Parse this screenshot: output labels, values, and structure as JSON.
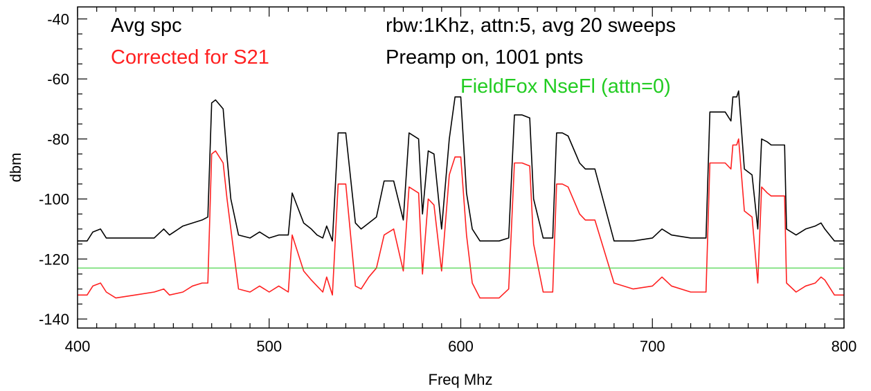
{
  "chart_data": {
    "type": "line",
    "xlabel": "Freq Mhz",
    "ylabel": "dbm",
    "xlim": [
      400,
      800
    ],
    "ylim": [
      -143,
      -36
    ],
    "x_ticks": [
      400,
      500,
      600,
      700,
      800
    ],
    "y_ticks": [
      -140,
      -120,
      -100,
      -80,
      -60,
      -40
    ],
    "grid": false,
    "annotations": [
      {
        "text": "Avg spc",
        "color": "#000000"
      },
      {
        "text": "Corrected for S21",
        "color": "#ff2020"
      },
      {
        "text": "rbw:1Khz, attn:5, avg 20 sweeps",
        "color": "#000000"
      },
      {
        "text": "Preamp  on, 1001 pnts",
        "color": "#000000"
      },
      {
        "text": "FieldFox NseFl (attn=0)",
        "color": "#22cc22"
      }
    ],
    "series": [
      {
        "name": "Avg spc",
        "color": "#000000",
        "x": [
          400,
          405,
          408,
          412,
          415,
          420,
          430,
          440,
          445,
          448,
          455,
          460,
          465,
          468,
          470,
          472,
          476,
          478,
          480,
          484,
          490,
          495,
          500,
          505,
          510,
          512,
          515,
          518,
          522,
          525,
          528,
          530,
          533,
          536,
          540,
          545,
          548,
          552,
          556,
          560,
          565,
          570,
          573,
          578,
          580,
          583,
          586,
          590,
          594,
          597,
          600,
          603,
          606,
          610,
          620,
          625,
          628,
          632,
          636,
          638,
          643,
          648,
          650,
          653,
          656,
          660,
          662,
          665,
          670,
          680,
          690,
          700,
          705,
          710,
          720,
          728,
          730,
          735,
          738,
          741,
          742,
          744,
          745,
          748,
          752,
          755,
          757,
          760,
          762,
          765,
          769,
          770,
          775,
          780,
          785,
          788,
          790,
          795,
          800
        ],
        "y": [
          -114,
          -114,
          -111,
          -110,
          -113,
          -113,
          -113,
          -113,
          -110,
          -112,
          -109,
          -108,
          -107,
          -106,
          -68,
          -67,
          -70,
          -86,
          -100,
          -112,
          -113,
          -111,
          -113,
          -112,
          -112,
          -98,
          -103,
          -108,
          -110,
          -112,
          -113,
          -109,
          -114,
          -78,
          -78,
          -108,
          -110,
          -108,
          -106,
          -94,
          -94,
          -107,
          -78,
          -80,
          -105,
          -84,
          -85,
          -110,
          -80,
          -66,
          -66,
          -98,
          -110,
          -114,
          -114,
          -113,
          -72,
          -72,
          -73,
          -100,
          -113,
          -113,
          -78,
          -78,
          -79,
          -85,
          -88,
          -90,
          -90,
          -114,
          -114,
          -113,
          -110,
          -112,
          -113,
          -113,
          -71,
          -71,
          -71,
          -74,
          -66,
          -66,
          -64,
          -90,
          -92,
          -110,
          -80,
          -81,
          -82,
          -82,
          -82,
          -110,
          -112,
          -110,
          -109,
          -108,
          -110,
          -114,
          -114
        ]
      },
      {
        "name": "Corrected for S21",
        "color": "#ff2020",
        "x": [
          400,
          405,
          408,
          412,
          415,
          420,
          430,
          440,
          445,
          448,
          455,
          460,
          465,
          468,
          470,
          472,
          476,
          478,
          480,
          484,
          490,
          495,
          500,
          505,
          510,
          512,
          515,
          518,
          522,
          525,
          528,
          530,
          533,
          536,
          540,
          545,
          548,
          552,
          556,
          560,
          565,
          570,
          573,
          578,
          580,
          583,
          586,
          590,
          594,
          597,
          600,
          603,
          606,
          610,
          620,
          625,
          628,
          632,
          636,
          638,
          643,
          648,
          650,
          653,
          656,
          660,
          662,
          665,
          670,
          680,
          690,
          700,
          705,
          710,
          720,
          728,
          730,
          735,
          738,
          741,
          742,
          744,
          745,
          748,
          752,
          755,
          757,
          760,
          762,
          765,
          769,
          770,
          775,
          780,
          785,
          788,
          790,
          795,
          800
        ],
        "y": [
          -132,
          -132,
          -129,
          -128,
          -131,
          -133,
          -132,
          -131,
          -130,
          -132,
          -131,
          -129,
          -128,
          -128,
          -85,
          -84,
          -88,
          -100,
          -110,
          -130,
          -131,
          -129,
          -131,
          -129,
          -131,
          -112,
          -118,
          -124,
          -127,
          -129,
          -131,
          -126,
          -132,
          -95,
          -95,
          -129,
          -130,
          -126,
          -123,
          -112,
          -110,
          -124,
          -96,
          -98,
          -125,
          -100,
          -102,
          -124,
          -92,
          -86,
          -86,
          -112,
          -128,
          -133,
          -133,
          -130,
          -88,
          -88,
          -89,
          -115,
          -131,
          -131,
          -95,
          -95,
          -96,
          -102,
          -105,
          -107,
          -107,
          -128,
          -130,
          -129,
          -126,
          -129,
          -131,
          -131,
          -88,
          -88,
          -88,
          -90,
          -82,
          -82,
          -80,
          -104,
          -106,
          -128,
          -96,
          -98,
          -99,
          -99,
          -99,
          -128,
          -131,
          -129,
          -128,
          -126,
          -127,
          -132,
          -132
        ]
      },
      {
        "name": "FieldFox NseFl (attn=0)",
        "color": "#22cc22",
        "x": [
          400,
          800
        ],
        "y": [
          -123,
          -123
        ]
      }
    ]
  }
}
